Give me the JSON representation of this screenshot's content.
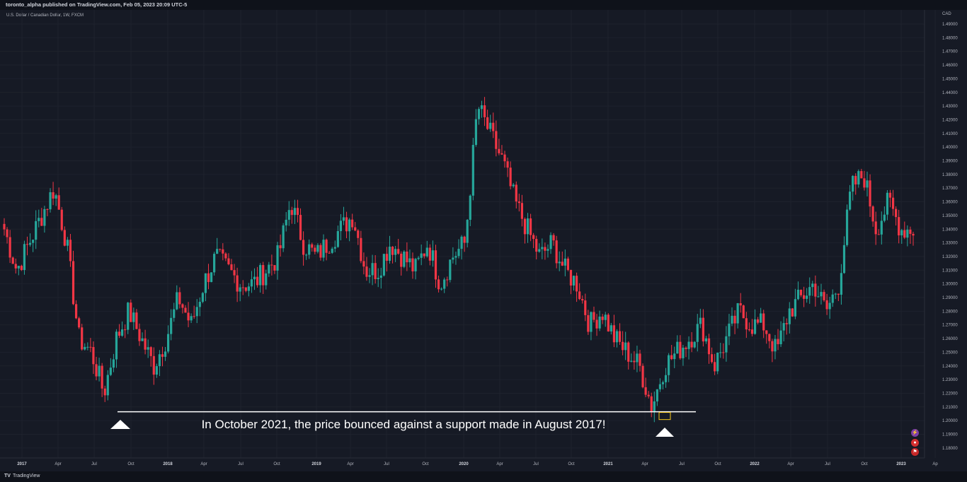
{
  "header": {
    "published_by": "toronto_alpha published on TradingView.com, Feb 05, 2023 20:09 UTC-5",
    "symbol": "U.S. Dollar / Canadian Dollar, 1W, FXCM",
    "currency": "CAD"
  },
  "annotation": {
    "text": "In October 2021, the price bounced against a support made in August 2017!"
  },
  "footer": {
    "logo_mark": "TV",
    "logo_text": "TradingView"
  },
  "side_icons": [
    "lightning-icon",
    "sale-icon",
    "flag-icon"
  ],
  "colors": {
    "up": "#26a69a",
    "down": "#f23645",
    "background": "#161a25",
    "grid": "#1e222d",
    "support": "#ffffff",
    "highlight": "#f5c518"
  },
  "chart_data": {
    "type": "candlestick",
    "title": "U.S. Dollar / Canadian Dollar, 1W, FXCM",
    "ylabel": "CAD",
    "ylim": [
      1.17,
      1.5
    ],
    "y_ticks": [
      "1.49000",
      "1.48000",
      "1.47000",
      "1.46000",
      "1.45000",
      "1.44000",
      "1.43000",
      "1.42000",
      "1.41000",
      "1.40000",
      "1.39000",
      "1.38000",
      "1.37000",
      "1.36000",
      "1.35000",
      "1.34000",
      "1.33000",
      "1.32000",
      "1.31000",
      "1.30000",
      "1.29000",
      "1.28000",
      "1.27000",
      "1.26000",
      "1.25000",
      "1.24000",
      "1.23000",
      "1.22000",
      "1.21000",
      "1.20000",
      "1.19000",
      "1.18000"
    ],
    "x_ticks": [
      "2017",
      "Apr",
      "Jul",
      "Oct",
      "2018",
      "Apr",
      "Jul",
      "Oct",
      "2019",
      "Apr",
      "Jul",
      "Oct",
      "2020",
      "Apr",
      "Jul",
      "Oct",
      "2021",
      "Apr",
      "Jul",
      "Oct",
      "2022",
      "Apr",
      "Jul",
      "Oct",
      "2023",
      "Ap"
    ],
    "weekly_close_path": [
      [
        "2017-01",
        1.34
      ],
      [
        "2017-02",
        1.31
      ],
      [
        "2017-03",
        1.33
      ],
      [
        "2017-04",
        1.35
      ],
      [
        "2017-05",
        1.37
      ],
      [
        "2017-06",
        1.33
      ],
      [
        "2017-07",
        1.26
      ],
      [
        "2017-08",
        1.25
      ],
      [
        "2017-09",
        1.22
      ],
      [
        "2017-10",
        1.26
      ],
      [
        "2017-11",
        1.28
      ],
      [
        "2017-12",
        1.26
      ],
      [
        "2018-01",
        1.24
      ],
      [
        "2018-02",
        1.26
      ],
      [
        "2018-03",
        1.29
      ],
      [
        "2018-04",
        1.27
      ],
      [
        "2018-05",
        1.3
      ],
      [
        "2018-06",
        1.32
      ],
      [
        "2018-07",
        1.31
      ],
      [
        "2018-08",
        1.3
      ],
      [
        "2018-09",
        1.3
      ],
      [
        "2018-10",
        1.31
      ],
      [
        "2018-11",
        1.32
      ],
      [
        "2018-12",
        1.36
      ],
      [
        "2019-01",
        1.33
      ],
      [
        "2019-02",
        1.32
      ],
      [
        "2019-03",
        1.33
      ],
      [
        "2019-04",
        1.34
      ],
      [
        "2019-05",
        1.35
      ],
      [
        "2019-06",
        1.31
      ],
      [
        "2019-07",
        1.31
      ],
      [
        "2019-08",
        1.33
      ],
      [
        "2019-09",
        1.32
      ],
      [
        "2019-10",
        1.31
      ],
      [
        "2019-11",
        1.33
      ],
      [
        "2019-12",
        1.3
      ],
      [
        "2020-01",
        1.32
      ],
      [
        "2020-02",
        1.33
      ],
      [
        "2020-03",
        1.43
      ],
      [
        "2020-04",
        1.41
      ],
      [
        "2020-05",
        1.39
      ],
      [
        "2020-06",
        1.36
      ],
      [
        "2020-07",
        1.34
      ],
      [
        "2020-08",
        1.32
      ],
      [
        "2020-09",
        1.33
      ],
      [
        "2020-10",
        1.31
      ],
      [
        "2020-11",
        1.3
      ],
      [
        "2020-12",
        1.27
      ],
      [
        "2021-01",
        1.28
      ],
      [
        "2021-02",
        1.26
      ],
      [
        "2021-03",
        1.25
      ],
      [
        "2021-04",
        1.24
      ],
      [
        "2021-05",
        1.21
      ],
      [
        "2021-06",
        1.24
      ],
      [
        "2021-07",
        1.25
      ],
      [
        "2021-08",
        1.26
      ],
      [
        "2021-09",
        1.27
      ],
      [
        "2021-10",
        1.24
      ],
      [
        "2021-11",
        1.26
      ],
      [
        "2021-12",
        1.28
      ],
      [
        "2022-01",
        1.27
      ],
      [
        "2022-02",
        1.27
      ],
      [
        "2022-03",
        1.25
      ],
      [
        "2022-04",
        1.28
      ],
      [
        "2022-05",
        1.29
      ],
      [
        "2022-06",
        1.3
      ],
      [
        "2022-07",
        1.28
      ],
      [
        "2022-08",
        1.3
      ],
      [
        "2022-09",
        1.37
      ],
      [
        "2022-10",
        1.38
      ],
      [
        "2022-11",
        1.34
      ],
      [
        "2022-12",
        1.36
      ],
      [
        "2023-01",
        1.34
      ],
      [
        "2023-02",
        1.34
      ]
    ],
    "support_level": 1.2065,
    "highlight_low": 1.2013,
    "markers": [
      "2017-09 low",
      "2021-06 low"
    ],
    "grid": true
  }
}
